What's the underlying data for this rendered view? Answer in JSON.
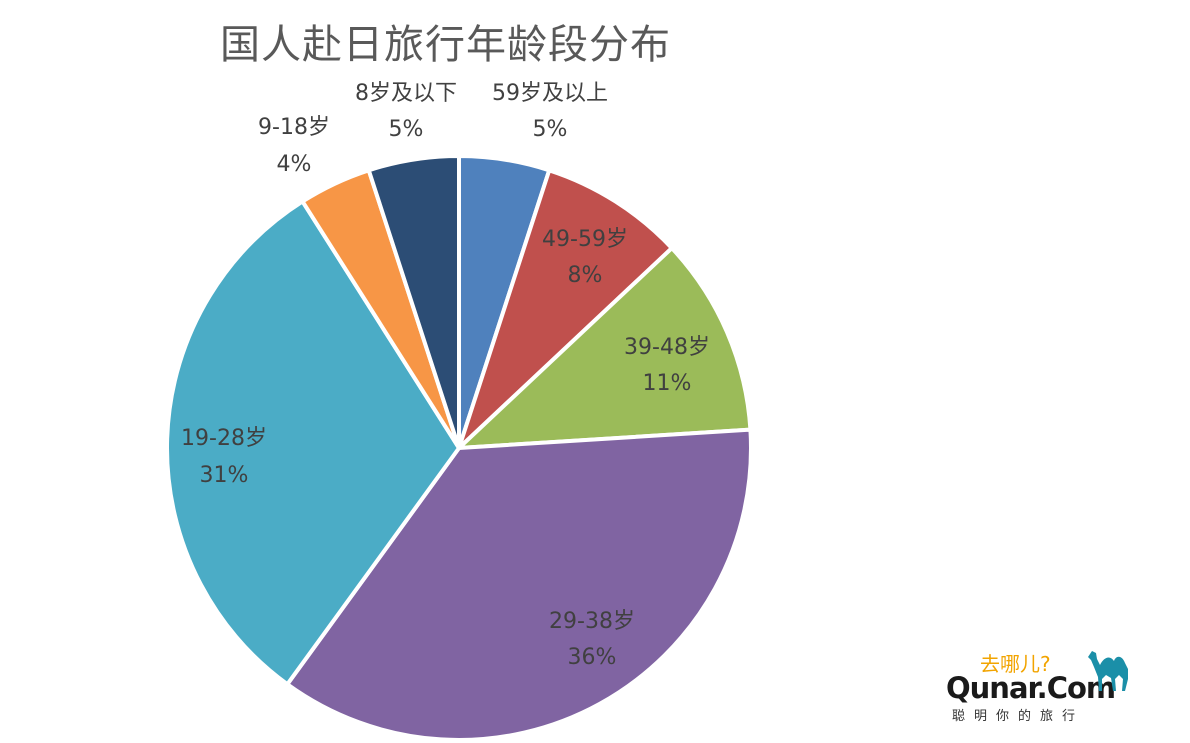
{
  "chart_data": {
    "type": "pie",
    "title": "国人赴日旅行年龄段分布",
    "slices": [
      {
        "label": "59岁及以上",
        "value": 5,
        "value_label": "5%",
        "color": "#4f81bd"
      },
      {
        "label": "49-59岁",
        "value": 8,
        "value_label": "8%",
        "color": "#c0504d"
      },
      {
        "label": "39-48岁",
        "value": 11,
        "value_label": "11%",
        "color": "#9bbb59"
      },
      {
        "label": "29-38岁",
        "value": 36,
        "value_label": "36%",
        "color": "#8064a2"
      },
      {
        "label": "19-28岁",
        "value": 31,
        "value_label": "31%",
        "color": "#4bacc6"
      },
      {
        "label": "9-18岁",
        "value": 4,
        "value_label": "4%",
        "color": "#f79646"
      },
      {
        "label": "8岁及以下",
        "value": 5,
        "value_label": "5%",
        "color": "#2c4d75"
      }
    ],
    "start_angle": "12 o'clock",
    "direction": "clockwise",
    "legend": "none"
  },
  "logo": {
    "slogan": "去哪儿?",
    "brand": "Qunar.Com",
    "tagline": "聪明你的旅行",
    "icon": "camel-icon",
    "slogan_color": "#f2a400",
    "icon_color": "#1b8fa8"
  }
}
